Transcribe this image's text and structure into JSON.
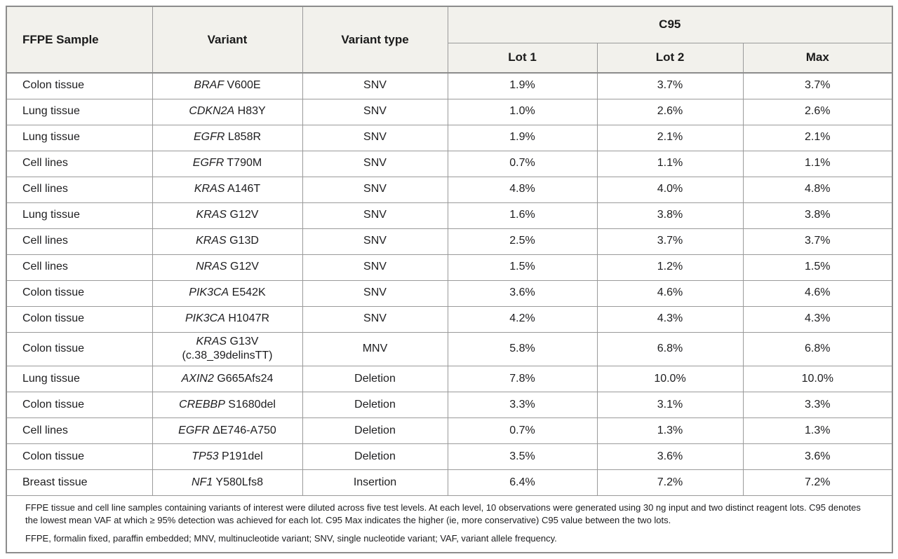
{
  "table": {
    "columns": {
      "sample": "FFPE Sample",
      "variant": "Variant",
      "variant_type": "Variant type",
      "c95_group": "C95",
      "lot1": "Lot 1",
      "lot2": "Lot 2",
      "max": "Max"
    },
    "rows": [
      {
        "sample": "Colon tissue",
        "gene": "BRAF",
        "mutation": "V600E",
        "variant_line2": "",
        "type": "SNV",
        "lot1": "1.9%",
        "lot2": "3.7%",
        "max": "3.7%"
      },
      {
        "sample": "Lung tissue",
        "gene": "CDKN2A",
        "mutation": "H83Y",
        "variant_line2": "",
        "type": "SNV",
        "lot1": "1.0%",
        "lot2": "2.6%",
        "max": "2.6%"
      },
      {
        "sample": "Lung tissue",
        "gene": "EGFR",
        "mutation": "L858R",
        "variant_line2": "",
        "type": "SNV",
        "lot1": "1.9%",
        "lot2": "2.1%",
        "max": "2.1%"
      },
      {
        "sample": "Cell lines",
        "gene": "EGFR",
        "mutation": "T790M",
        "variant_line2": "",
        "type": "SNV",
        "lot1": "0.7%",
        "lot2": "1.1%",
        "max": "1.1%"
      },
      {
        "sample": "Cell lines",
        "gene": "KRAS",
        "mutation": "A146T",
        "variant_line2": "",
        "type": "SNV",
        "lot1": "4.8%",
        "lot2": "4.0%",
        "max": "4.8%"
      },
      {
        "sample": "Lung tissue",
        "gene": "KRAS",
        "mutation": "G12V",
        "variant_line2": "",
        "type": "SNV",
        "lot1": "1.6%",
        "lot2": "3.8%",
        "max": "3.8%"
      },
      {
        "sample": "Cell lines",
        "gene": "KRAS",
        "mutation": "G13D",
        "variant_line2": "",
        "type": "SNV",
        "lot1": "2.5%",
        "lot2": "3.7%",
        "max": "3.7%"
      },
      {
        "sample": "Cell lines",
        "gene": "NRAS",
        "mutation": "G12V",
        "variant_line2": "",
        "type": "SNV",
        "lot1": "1.5%",
        "lot2": "1.2%",
        "max": "1.5%"
      },
      {
        "sample": "Colon tissue",
        "gene": "PIK3CA",
        "mutation": "E542K",
        "variant_line2": "",
        "type": "SNV",
        "lot1": "3.6%",
        "lot2": "4.6%",
        "max": "4.6%"
      },
      {
        "sample": "Colon tissue",
        "gene": "PIK3CA",
        "mutation": "H1047R",
        "variant_line2": "",
        "type": "SNV",
        "lot1": "4.2%",
        "lot2": "4.3%",
        "max": "4.3%"
      },
      {
        "sample": "Colon tissue",
        "gene": "KRAS",
        "mutation": "G13V",
        "variant_line2": "(c.38_39delinsTT)",
        "type": "MNV",
        "lot1": "5.8%",
        "lot2": "6.8%",
        "max": "6.8%"
      },
      {
        "sample": "Lung tissue",
        "gene": "AXIN2",
        "mutation": "G665Afs24",
        "variant_line2": "",
        "type": "Deletion",
        "lot1": "7.8%",
        "lot2": "10.0%",
        "max": "10.0%"
      },
      {
        "sample": "Colon tissue",
        "gene": "CREBBP",
        "mutation": "S1680del",
        "variant_line2": "",
        "type": "Deletion",
        "lot1": "3.3%",
        "lot2": "3.1%",
        "max": "3.3%"
      },
      {
        "sample": "Cell lines",
        "gene": "EGFR",
        "mutation": "ΔE746-A750",
        "variant_line2": "",
        "type": "Deletion",
        "lot1": "0.7%",
        "lot2": "1.3%",
        "max": "1.3%"
      },
      {
        "sample": "Colon tissue",
        "gene": "TP53",
        "mutation": "P191del",
        "variant_line2": "",
        "type": "Deletion",
        "lot1": "3.5%",
        "lot2": "3.6%",
        "max": "3.6%"
      },
      {
        "sample": "Breast tissue",
        "gene": "NF1",
        "mutation": "Y580Lfs8",
        "variant_line2": "",
        "type": "Insertion",
        "lot1": "6.4%",
        "lot2": "7.2%",
        "max": "7.2%"
      }
    ],
    "footnotes": [
      "FFPE tissue and cell line samples containing variants of interest were diluted across five test levels. At each level, 10 observations were generated using 30 ng input and two distinct reagent lots. C95 denotes the lowest mean VAF at which ≥ 95% detection was achieved for each lot. C95 Max indicates the higher (ie, more conservative) C95 value between the two lots.",
      "FFPE, formalin fixed, paraffin embedded; MNV, multinucleotide variant; SNV, single nucleotide variant; VAF, variant allele frequency."
    ],
    "colors": {
      "header_background": "#f2f1ec",
      "grid_border": "#9a9a9a",
      "outer_border": "#8c8c8c",
      "text": "#1d1d1f"
    }
  }
}
